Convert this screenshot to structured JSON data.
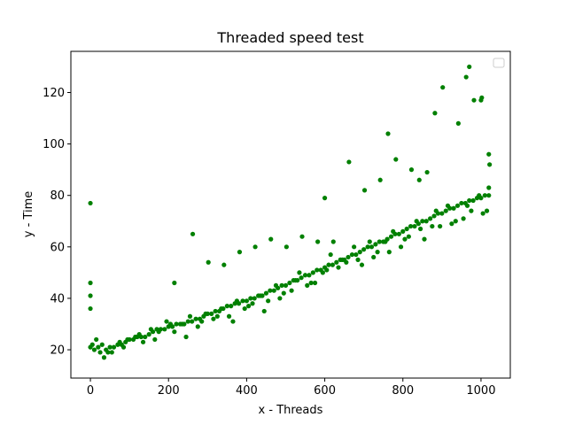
{
  "chart_data": {
    "type": "scatter",
    "title": "Threaded speed test",
    "xlabel": "x - Threads",
    "ylabel": "y - Time",
    "xlim": [
      -50,
      1075
    ],
    "ylim": [
      9,
      136
    ],
    "xticks": [
      "0",
      "200",
      "400",
      "600",
      "800",
      "1000"
    ],
    "yticks": [
      "20",
      "40",
      "60",
      "80",
      "100",
      "120"
    ],
    "grid": false,
    "legend": {
      "placement": "top-right",
      "entries": []
    },
    "marker_color": "#008000",
    "series": [
      {
        "x": [
          0,
          0,
          0,
          0,
          0,
          10,
          20,
          25,
          30,
          40,
          50,
          60,
          70,
          80,
          90,
          100,
          110,
          120,
          130,
          140,
          150,
          160,
          170,
          180,
          190,
          200,
          210,
          220,
          230,
          240,
          250,
          260,
          270,
          280,
          290,
          300,
          310,
          320,
          330,
          340,
          350,
          360,
          370,
          380,
          390,
          400,
          410,
          420,
          430,
          440,
          450,
          460,
          470,
          480,
          490,
          500,
          510,
          520,
          530,
          540,
          550,
          560,
          570,
          580,
          590,
          600,
          610,
          620,
          630,
          640,
          650,
          660,
          670,
          680,
          690,
          700,
          710,
          720,
          730,
          740,
          750,
          760,
          770,
          780,
          790,
          800,
          810,
          820,
          830,
          840,
          850,
          860,
          870,
          880,
          890,
          900,
          910,
          920,
          930,
          940,
          950,
          960,
          970,
          980,
          990,
          1000,
          1010,
          1020,
          1020,
          1020,
          15,
          35,
          55,
          75,
          95,
          115,
          135,
          155,
          175,
          195,
          215,
          235,
          255,
          275,
          295,
          315,
          335,
          355,
          375,
          395,
          415,
          435,
          455,
          475,
          495,
          515,
          535,
          555,
          575,
          595,
          615,
          635,
          655,
          675,
          695,
          715,
          735,
          755,
          775,
          795,
          815,
          835,
          855,
          875,
          895,
          915,
          935,
          955,
          975,
          995,
          1015,
          5,
          45,
          85,
          125,
          165,
          205,
          245,
          285,
          325,
          365,
          405,
          445,
          485,
          525,
          565,
          605,
          645,
          685,
          725,
          765,
          805,
          845,
          885,
          925,
          965,
          1005,
          215,
          262,
          302,
          342,
          382,
          422,
          462,
          502,
          542,
          582,
          600,
          622,
          662,
          702,
          742,
          762,
          782,
          822,
          842,
          862,
          882,
          902,
          942,
          962,
          982,
          1002,
          1022,
          970,
          1000
        ],
        "y": [
          77,
          46,
          41,
          36,
          21,
          20,
          21,
          19,
          22,
          20,
          21,
          21,
          22,
          22,
          23,
          24,
          24,
          25,
          25,
          25,
          26,
          27,
          28,
          28,
          28,
          29,
          29,
          30,
          30,
          30,
          31,
          31,
          32,
          32,
          33,
          34,
          34,
          35,
          35,
          36,
          37,
          37,
          38,
          38,
          39,
          39,
          40,
          40,
          41,
          41,
          42,
          43,
          43,
          44,
          45,
          45,
          46,
          47,
          47,
          48,
          49,
          49,
          50,
          51,
          51,
          52,
          53,
          53,
          54,
          55,
          55,
          56,
          57,
          57,
          58,
          59,
          60,
          60,
          61,
          62,
          62,
          63,
          64,
          65,
          65,
          66,
          67,
          68,
          68,
          69,
          70,
          70,
          71,
          72,
          73,
          73,
          74,
          75,
          75,
          76,
          77,
          77,
          78,
          78,
          79,
          79,
          80,
          80,
          83,
          96,
          24,
          17,
          19,
          23,
          24,
          25,
          23,
          28,
          27,
          31,
          27,
          30,
          33,
          29,
          34,
          32,
          36,
          33,
          39,
          36,
          38,
          41,
          39,
          45,
          42,
          43,
          50,
          45,
          46,
          50,
          57,
          52,
          54,
          60,
          53,
          62,
          58,
          62,
          66,
          60,
          64,
          70,
          63,
          68,
          68,
          76,
          70,
          71,
          74,
          80,
          74,
          22,
          19,
          21,
          26,
          24,
          30,
          25,
          31,
          33,
          31,
          37,
          35,
          40,
          47,
          46,
          51,
          55,
          55,
          56,
          58,
          63,
          67,
          74,
          69,
          76,
          73,
          46,
          65,
          54,
          53,
          58,
          60,
          63,
          60,
          64,
          62,
          79,
          62,
          93,
          82,
          86,
          104,
          94,
          90,
          86,
          89,
          112,
          122,
          108,
          126,
          117,
          118,
          92,
          130,
          117
        ]
      }
    ]
  }
}
